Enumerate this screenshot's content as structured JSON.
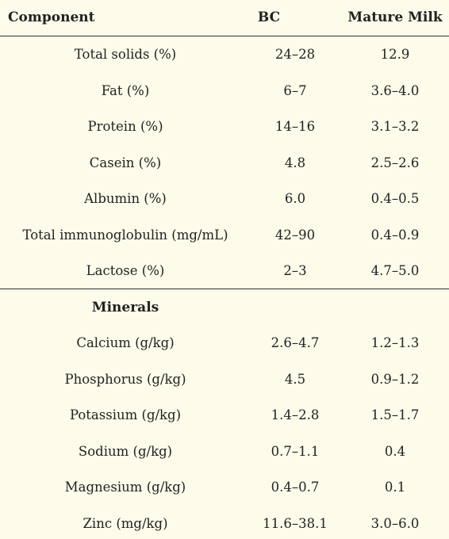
{
  "table": {
    "header": [
      "Component",
      "BC",
      "Mature Milk"
    ],
    "rows": [
      [
        "Total solids (%)",
        "24–28",
        "12.9"
      ],
      [
        "Fat (%)",
        "6–7",
        "3.6–4.0"
      ],
      [
        "Protein (%)",
        "14–16",
        "3.1–3.2"
      ],
      [
        "Casein (%)",
        "4.8",
        "2.5–2.6"
      ],
      [
        "Albumin (%)",
        "6.0",
        "0.4–0.5"
      ],
      [
        "Total immunoglobulin (mg/mL)",
        "42–90",
        "0.4–0.9"
      ],
      [
        "Lactose (%)",
        "2–3",
        "4.7–5.0"
      ]
    ],
    "section_title": "Minerals",
    "section_rows": [
      [
        "Calcium (g/kg)",
        "2.6–4.7",
        "1.2–1.3"
      ],
      [
        "Phosphorus (g/kg)",
        "4.5",
        "0.9–1.2"
      ],
      [
        "Potassium (g/kg)",
        "1.4–2.8",
        "1.5–1.7"
      ],
      [
        "Sodium (g/kg)",
        "0.7–1.1",
        "0.4"
      ],
      [
        "Magnesium (g/kg)",
        "0.4–0.7",
        "0.1"
      ],
      [
        "Zinc (mg/kg)",
        "11.6–38.1",
        "3.0–6.0"
      ]
    ]
  }
}
